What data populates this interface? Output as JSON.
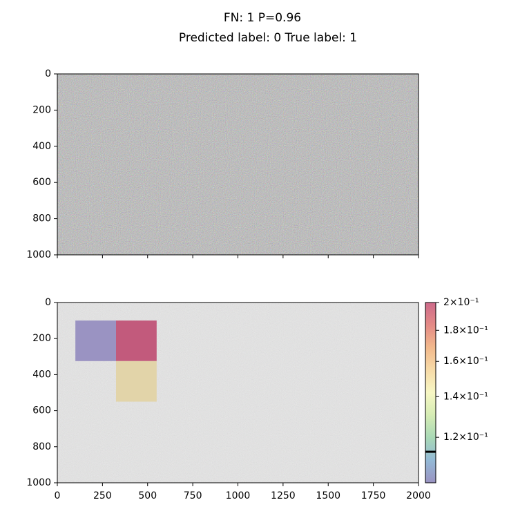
{
  "chart_data": [
    {
      "type": "image",
      "title": "FN: 1 P=0.96",
      "subtitle": "Predicted label: 0 True label: 1",
      "xlim": [
        0,
        2000
      ],
      "ylim": [
        1000,
        0
      ],
      "xticks": [
        0,
        250,
        500,
        750,
        1000,
        1250,
        1500,
        1750,
        2000
      ],
      "yticks": [
        0,
        200,
        400,
        600,
        800,
        1000
      ]
    },
    {
      "type": "heatmap",
      "xlim": [
        0,
        2000
      ],
      "ylim": [
        1000,
        0
      ],
      "xticks": [
        0,
        250,
        500,
        750,
        1000,
        1250,
        1500,
        1750,
        2000
      ],
      "yticks": [
        0,
        200,
        400,
        600,
        800,
        1000
      ],
      "cells": [
        {
          "x": [
            100,
            325
          ],
          "y": [
            100,
            325
          ],
          "value": 0.101,
          "color": "#9a93c2"
        },
        {
          "x": [
            325,
            550
          ],
          "y": [
            100,
            325
          ],
          "value": 0.2,
          "color": "#c25a7c"
        },
        {
          "x": [
            325,
            550
          ],
          "y": [
            325,
            550
          ],
          "value": 0.16,
          "color": "#e2d4a9"
        }
      ],
      "colorbar": {
        "scale": "log",
        "lim": [
          0.101,
          0.2
        ],
        "marker": 0.1136,
        "colors": [
          "#9a93c2",
          "#93b9d6",
          "#a9d9b6",
          "#d5ecb4",
          "#f7f7c4",
          "#f7dba8",
          "#f2b98c",
          "#e48a86",
          "#cd6a8a"
        ],
        "ticks": [
          {
            "value": 0.2,
            "label": "2×10⁻¹"
          },
          {
            "value": 0.18,
            "label": "1.8×10⁻¹"
          },
          {
            "value": 0.16,
            "label": "1.6×10⁻¹"
          },
          {
            "value": 0.14,
            "label": "1.4×10⁻¹"
          },
          {
            "value": 0.12,
            "label": "1.2×10⁻¹"
          }
        ]
      }
    }
  ]
}
